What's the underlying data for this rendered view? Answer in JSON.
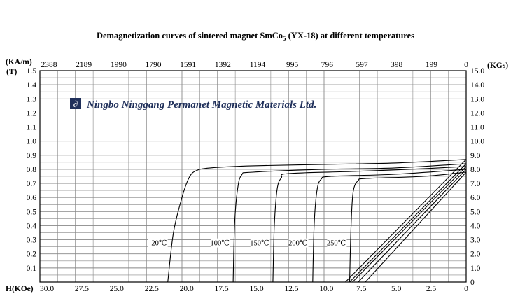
{
  "chart_data": {
    "type": "line",
    "title_main": "Demagnetization curves of sintered magnet SmCo",
    "title_sub": "5",
    "title_tail": " (YX-18) at different temperatures",
    "watermark": "Ningbo Ninggang Permanet Magnetic Materials Ltd.",
    "x_bottom": {
      "label": "H(KOe)",
      "ticks": [
        "30.0",
        "27.5",
        "25.0",
        "22.5",
        "20.0",
        "17.5",
        "15.0",
        "12.5",
        "10.0",
        "7.5",
        "5.0",
        "2.5",
        "0"
      ],
      "range": [
        30,
        0
      ]
    },
    "x_top": {
      "label": "(KA/m)",
      "ticks": [
        "2388",
        "2189",
        "1990",
        "1790",
        "1591",
        "1392",
        "1194",
        "995",
        "796",
        "597",
        "398",
        "199",
        "0"
      ]
    },
    "y_left": {
      "label": "(T)",
      "ticks": [
        "1.5",
        "1.4",
        "1.3",
        "1.2",
        "1.1",
        "1.0",
        "0.9",
        "0.8",
        "0.7",
        "0.6",
        "0.5",
        "0.4",
        "0.3",
        "0.2",
        "0.1"
      ],
      "range": [
        0,
        1.5
      ]
    },
    "y_right": {
      "label": "(KGs)",
      "ticks": [
        "15.0",
        "14.0",
        "13.0",
        "12.0",
        "11.0",
        "10.0",
        "9.0",
        "8.0",
        "7.0",
        "6.0",
        "5.0",
        "4.0",
        "3.0",
        "2.0",
        "1.0",
        "0"
      ]
    },
    "grid": true,
    "series": [
      {
        "name": "20℃",
        "intrinsic": [
          [
            21.0,
            0
          ],
          [
            20.6,
            0.35
          ],
          [
            20.0,
            0.6
          ],
          [
            19.5,
            0.74
          ],
          [
            19.0,
            0.79
          ],
          [
            18.0,
            0.81
          ],
          [
            15,
            0.825
          ],
          [
            10,
            0.835
          ],
          [
            5,
            0.845
          ],
          [
            0,
            0.87
          ]
        ],
        "normal": [
          [
            0,
            0.87
          ],
          [
            8.5,
            0
          ]
        ]
      },
      {
        "name": "100℃",
        "intrinsic": [
          [
            16.4,
            0
          ],
          [
            16.3,
            0.4
          ],
          [
            16.1,
            0.65
          ],
          [
            15.8,
            0.76
          ],
          [
            15.0,
            0.78
          ],
          [
            10,
            0.8
          ],
          [
            5,
            0.81
          ],
          [
            0,
            0.84
          ]
        ],
        "normal": [
          [
            0,
            0.84
          ],
          [
            8.2,
            0
          ]
        ]
      },
      {
        "name": "150℃",
        "intrinsic": [
          [
            13.6,
            0
          ],
          [
            13.5,
            0.4
          ],
          [
            13.3,
            0.66
          ],
          [
            13.0,
            0.74
          ],
          [
            12.5,
            0.77
          ],
          [
            8,
            0.785
          ],
          [
            4,
            0.8
          ],
          [
            0,
            0.82
          ]
        ],
        "normal": [
          [
            0,
            0.82
          ],
          [
            8.0,
            0
          ]
        ]
      },
      {
        "name": "200℃",
        "intrinsic": [
          [
            10.8,
            0
          ],
          [
            10.7,
            0.4
          ],
          [
            10.5,
            0.65
          ],
          [
            10.2,
            0.73
          ],
          [
            9.5,
            0.75
          ],
          [
            5,
            0.765
          ],
          [
            0,
            0.8
          ]
        ],
        "normal": [
          [
            0,
            0.8
          ],
          [
            7.6,
            0
          ]
        ]
      },
      {
        "name": "250℃",
        "intrinsic": [
          [
            8.2,
            0
          ],
          [
            8.1,
            0.4
          ],
          [
            7.95,
            0.64
          ],
          [
            7.6,
            0.72
          ],
          [
            7.0,
            0.735
          ],
          [
            3,
            0.75
          ],
          [
            0,
            0.78
          ]
        ],
        "normal": [
          [
            0,
            0.78
          ],
          [
            7.1,
            0
          ]
        ]
      }
    ],
    "temp_labels": [
      {
        "name": "20℃",
        "h": 21.2,
        "b": 0.26
      },
      {
        "name": "100℃",
        "h": 16.8,
        "b": 0.26
      },
      {
        "name": "150℃",
        "h": 14.0,
        "b": 0.26
      },
      {
        "name": "200℃",
        "h": 11.3,
        "b": 0.26
      },
      {
        "name": "250℃",
        "h": 8.6,
        "b": 0.26
      }
    ]
  }
}
